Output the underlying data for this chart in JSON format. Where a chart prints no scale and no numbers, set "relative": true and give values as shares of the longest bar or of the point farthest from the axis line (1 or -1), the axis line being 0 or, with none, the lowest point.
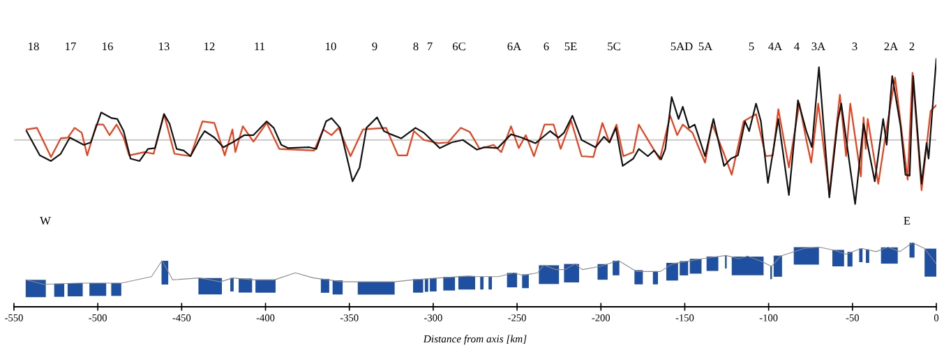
{
  "chart_data": [
    {
      "type": "line",
      "relative": true,
      "xlim": [
        -550,
        0
      ],
      "tick_labels": false,
      "grid": false,
      "marker": "none",
      "line_style": "solid",
      "ref_lines": [
        {
          "axis": "y",
          "value": 0,
          "color": "#c8c8c8"
        }
      ],
      "annotations": [
        "18",
        "17",
        "16",
        "13",
        "12",
        "11",
        "10",
        "9",
        "8",
        "7",
        "6C",
        "6A",
        "6",
        "5E",
        "5C",
        "5AD",
        "5A",
        "5",
        "4A",
        "4",
        "3A",
        "3",
        "2A",
        "2"
      ],
      "series": [
        {
          "color": "#e8401c",
          "x": [
            -542.5,
            -536.3,
            -527.9,
            -522.1,
            -517.9,
            -513.8,
            -509.6,
            -506.3,
            -500.9,
            -496.7,
            -493.0,
            -488.8,
            -484.6,
            -481.3,
            -472.1,
            -466.7,
            -460.5,
            -454.3,
            -444.7,
            -437.6,
            -430.5,
            -424.3,
            -419.7,
            -418.0,
            -413.5,
            -407.2,
            -399.3,
            -391.8,
            -371.0,
            -365.6,
            -360.6,
            -356.4,
            -349.3,
            -341.9,
            -328.1,
            -321.0,
            -315.6,
            -311.5,
            -305.6,
            -296.9,
            -291.1,
            -283.6,
            -278.2,
            -272.3,
            -264.0,
            -259.4,
            -253.6,
            -249.0,
            -244.8,
            -239.9,
            -233.6,
            -228.2,
            -224.0,
            -217.8,
            -211.5,
            -204.5,
            -199.1,
            -194.9,
            -190.7,
            -186.6,
            -180.7,
            -177.4,
            -169.9,
            -164.9,
            -158.7,
            -154.5,
            -151.2,
            -145.4,
            -137.9,
            -133.7,
            -126.6,
            -122.0,
            -114.9,
            -107.5,
            -101.7,
            -97.5,
            -94.2,
            -87.9,
            -81.7,
            -77.5,
            -74.6,
            -70.4,
            -63.8,
            -57.5,
            -53.8,
            -51.3,
            -45.0,
            -43.4,
            -42.1,
            -40.9,
            -34.6,
            -29.6,
            -24.6,
            -17.1,
            -14.2,
            -8.8,
            -3.4,
            0
          ],
          "values": [
            0.13,
            0.15,
            -0.21,
            0.02,
            0.03,
            0.15,
            0.09,
            -0.19,
            0.19,
            0.19,
            0.06,
            0.19,
            0.03,
            -0.19,
            -0.15,
            -0.17,
            0.32,
            -0.17,
            -0.2,
            0.23,
            0.21,
            -0.19,
            0.13,
            -0.15,
            0.17,
            -0.02,
            0.21,
            -0.11,
            -0.13,
            0.13,
            0.06,
            0.15,
            -0.2,
            0.13,
            0.15,
            -0.19,
            -0.19,
            0.11,
            0.0,
            -0.04,
            -0.03,
            0.15,
            0.1,
            -0.11,
            -0.06,
            -0.15,
            0.17,
            -0.1,
            0.06,
            -0.2,
            0.19,
            0.19,
            -0.11,
            0.24,
            -0.2,
            -0.21,
            0.21,
            -0.03,
            0.19,
            -0.2,
            -0.15,
            0.19,
            -0.07,
            -0.24,
            0.3,
            0.06,
            0.19,
            0.09,
            -0.28,
            0.2,
            -0.17,
            -0.43,
            0.23,
            0.32,
            -0.2,
            -0.19,
            0.38,
            -0.34,
            0.45,
            0.0,
            -0.28,
            0.45,
            -0.66,
            0.56,
            -0.2,
            0.45,
            -0.45,
            0.28,
            -0.11,
            0.26,
            -0.54,
            0.15,
            0.77,
            -0.49,
            0.83,
            -0.62,
            0.36,
            0.43
          ]
        },
        {
          "color": "#111111",
          "x": [
            -542.5,
            -534.6,
            -527.9,
            -522.1,
            -516.7,
            -508.4,
            -504.2,
            -498.0,
            -491.7,
            -488.4,
            -484.6,
            -480.5,
            -475.1,
            -470.1,
            -465.9,
            -460.5,
            -457.2,
            -453.0,
            -448.8,
            -444.7,
            -438.8,
            -436.3,
            -430.5,
            -425.1,
            -419.7,
            -412.6,
            -407.2,
            -399.3,
            -395.1,
            -390.6,
            -386.4,
            -373.9,
            -369.7,
            -363.9,
            -360.6,
            -355.6,
            -348.1,
            -343.9,
            -339.8,
            -333.5,
            -329.4,
            -325.2,
            -319.0,
            -310.6,
            -305.6,
            -296.1,
            -289.0,
            -282.3,
            -274.0,
            -269.8,
            -261.5,
            -253.6,
            -247.4,
            -239.0,
            -230.3,
            -225.3,
            -222.0,
            -217.0,
            -211.5,
            -203.2,
            -198.2,
            -194.9,
            -191.1,
            -187.0,
            -180.7,
            -177.4,
            -172.0,
            -168.3,
            -164.1,
            -161.6,
            -157.8,
            -153.7,
            -151.2,
            -147.4,
            -144.1,
            -137.9,
            -132.9,
            -126.6,
            -122.5,
            -118.3,
            -114.1,
            -111.6,
            -107.5,
            -104.6,
            -100.4,
            -94.2,
            -87.9,
            -82.5,
            -77.5,
            -74.2,
            -70.0,
            -63.8,
            -58.8,
            -56.7,
            -48.4,
            -43.4,
            -36.7,
            -31.7,
            -29.6,
            -26.3,
            -21.3,
            -18.4,
            -15.9,
            -13.8,
            -8.8,
            -5.8,
            -4.6,
            0
          ],
          "values": [
            0.11,
            -0.19,
            -0.26,
            -0.17,
            0.03,
            -0.06,
            -0.03,
            0.34,
            0.27,
            0.26,
            0.11,
            -0.23,
            -0.26,
            -0.11,
            -0.1,
            0.32,
            0.2,
            -0.11,
            -0.13,
            -0.2,
            0.03,
            0.11,
            0.03,
            -0.09,
            -0.03,
            0.06,
            0.06,
            0.23,
            0.15,
            -0.06,
            -0.1,
            -0.09,
            -0.11,
            0.23,
            0.27,
            0.15,
            -0.51,
            -0.34,
            0.15,
            0.28,
            0.11,
            0.07,
            0.02,
            0.15,
            0.09,
            -0.1,
            -0.03,
            0.0,
            -0.12,
            -0.09,
            -0.1,
            0.07,
            0.03,
            -0.04,
            0.11,
            0.03,
            0.09,
            0.3,
            0.0,
            -0.09,
            0.04,
            -0.03,
            0.15,
            -0.32,
            -0.23,
            -0.11,
            -0.2,
            -0.13,
            -0.24,
            -0.11,
            0.53,
            0.26,
            0.41,
            0.15,
            0.19,
            -0.2,
            0.26,
            -0.32,
            -0.23,
            -0.19,
            0.23,
            0.11,
            0.45,
            0.23,
            -0.53,
            0.26,
            -0.68,
            0.49,
            0.11,
            -0.09,
            0.9,
            -0.71,
            0.23,
            0.45,
            -0.79,
            0.2,
            -0.51,
            0.26,
            -0.06,
            0.79,
            0.17,
            -0.43,
            -0.44,
            0.79,
            -0.54,
            -0.04,
            -0.23,
            1.0
          ]
        }
      ]
    },
    {
      "type": "line",
      "relative": true,
      "xlim": [
        -550,
        0
      ],
      "xticks": [
        -550,
        -500,
        -450,
        -400,
        -350,
        -300,
        -250,
        -200,
        -150,
        -100,
        -50,
        0
      ],
      "xlabel": "Distance from axis [km]",
      "tick_labels": "x",
      "grid": false,
      "marker": "none",
      "line_style": "solid",
      "annotations": [
        "W",
        "E"
      ],
      "series": [
        {
          "color": "#8a8a8a",
          "x": [
            -542.9,
            -532.1,
            -510.9,
            -496.3,
            -485.9,
            -468.0,
            -461.7,
            -457.2,
            -455.5,
            -439.3,
            -426.8,
            -419.7,
            -407.2,
            -394.7,
            -382.2,
            -371.4,
            -353.5,
            -323.1,
            -312.3,
            -296.5,
            -278.6,
            -275.2,
            -261.1,
            -251.9,
            -246.5,
            -237.8,
            -234.0,
            -226.9,
            -221.5,
            -215.3,
            -211.1,
            -200.3,
            -189.5,
            -178.7,
            -164.5,
            -157.4,
            -139.5,
            -125.4,
            -117.9,
            -112.5,
            -103.7,
            -98.3,
            -92.9,
            -78.7,
            -69.6,
            -60.8,
            -53.8,
            -44.6,
            -35.9,
            -28.8,
            -21.7,
            -14.2,
            -7.1,
            0
          ],
          "values": [
            0.42,
            0.35,
            0.37,
            0.37,
            0.37,
            0.47,
            0.72,
            0.51,
            0.42,
            0.45,
            0.39,
            0.45,
            0.42,
            0.42,
            0.53,
            0.45,
            0.39,
            0.39,
            0.42,
            0.45,
            0.48,
            0.47,
            0.47,
            0.53,
            0.49,
            0.53,
            0.65,
            0.58,
            0.58,
            0.67,
            0.58,
            0.63,
            0.72,
            0.55,
            0.55,
            0.67,
            0.75,
            0.8,
            0.75,
            0.79,
            0.7,
            0.63,
            0.79,
            0.91,
            0.93,
            0.88,
            0.82,
            0.91,
            0.86,
            0.93,
            0.86,
            1.0,
            0.91,
            0.67
          ]
        }
      ],
      "bands": [
        {
          "axis": "x",
          "from": -543,
          "to": -531,
          "color": "#1f4fa0"
        },
        {
          "axis": "x",
          "from": -526,
          "to": -520,
          "color": "#1f4fa0"
        },
        {
          "axis": "x",
          "from": -518,
          "to": -509,
          "color": "#1f4fa0"
        },
        {
          "axis": "x",
          "from": -505,
          "to": -495,
          "color": "#1f4fa0"
        },
        {
          "axis": "x",
          "from": -492,
          "to": -486,
          "color": "#1f4fa0"
        },
        {
          "axis": "x",
          "from": -462,
          "to": -458,
          "color": "#1f4fa0"
        },
        {
          "axis": "x",
          "from": -440,
          "to": -426,
          "color": "#1f4fa0"
        },
        {
          "axis": "x",
          "from": -421,
          "to": -419,
          "color": "#1f4fa0"
        },
        {
          "axis": "x",
          "from": -416,
          "to": -408,
          "color": "#1f4fa0"
        },
        {
          "axis": "x",
          "from": -406,
          "to": -394,
          "color": "#1f4fa0"
        },
        {
          "axis": "x",
          "from": -367,
          "to": -362,
          "color": "#1f4fa0"
        },
        {
          "axis": "x",
          "from": -360,
          "to": -354,
          "color": "#1f4fa0"
        },
        {
          "axis": "x",
          "from": -345,
          "to": -323,
          "color": "#1f4fa0"
        },
        {
          "axis": "x",
          "from": -312,
          "to": -306,
          "color": "#1f4fa0"
        },
        {
          "axis": "x",
          "from": -305,
          "to": -303,
          "color": "#1f4fa0"
        },
        {
          "axis": "x",
          "from": -302,
          "to": -298,
          "color": "#1f4fa0"
        },
        {
          "axis": "x",
          "from": -294,
          "to": -287,
          "color": "#1f4fa0"
        },
        {
          "axis": "x",
          "from": -285,
          "to": -275,
          "color": "#1f4fa0"
        },
        {
          "axis": "x",
          "from": -272,
          "to": -270,
          "color": "#1f4fa0"
        },
        {
          "axis": "x",
          "from": -267,
          "to": -265,
          "color": "#1f4fa0"
        },
        {
          "axis": "x",
          "from": -256,
          "to": -250,
          "color": "#1f4fa0"
        },
        {
          "axis": "x",
          "from": -247,
          "to": -243,
          "color": "#1f4fa0"
        },
        {
          "axis": "x",
          "from": -237,
          "to": -225,
          "color": "#1f4fa0"
        },
        {
          "axis": "x",
          "from": -222,
          "to": -213,
          "color": "#1f4fa0"
        },
        {
          "axis": "x",
          "from": -202,
          "to": -196,
          "color": "#1f4fa0"
        },
        {
          "axis": "x",
          "from": -193,
          "to": -189,
          "color": "#1f4fa0"
        },
        {
          "axis": "x",
          "from": -180,
          "to": -175,
          "color": "#1f4fa0"
        },
        {
          "axis": "x",
          "from": -169,
          "to": -166,
          "color": "#1f4fa0"
        },
        {
          "axis": "x",
          "from": -161,
          "to": -154,
          "color": "#1f4fa0"
        },
        {
          "axis": "x",
          "from": -153,
          "to": -148,
          "color": "#1f4fa0"
        },
        {
          "axis": "x",
          "from": -147,
          "to": -140,
          "color": "#1f4fa0"
        },
        {
          "axis": "x",
          "from": -137,
          "to": -130,
          "color": "#1f4fa0"
        },
        {
          "axis": "x",
          "from": -126,
          "to": -125,
          "color": "#1f4fa0"
        },
        {
          "axis": "x",
          "from": -122,
          "to": -103,
          "color": "#1f4fa0"
        },
        {
          "axis": "x",
          "from": -99,
          "to": -98,
          "color": "#1f4fa0"
        },
        {
          "axis": "x",
          "from": -97,
          "to": -92,
          "color": "#1f4fa0"
        },
        {
          "axis": "x",
          "from": -85,
          "to": -70,
          "color": "#1f4fa0"
        },
        {
          "axis": "x",
          "from": -62,
          "to": -55,
          "color": "#1f4fa0"
        },
        {
          "axis": "x",
          "from": -53,
          "to": -50,
          "color": "#1f4fa0"
        },
        {
          "axis": "x",
          "from": -46,
          "to": -44,
          "color": "#1f4fa0"
        },
        {
          "axis": "x",
          "from": -42,
          "to": -40,
          "color": "#1f4fa0"
        },
        {
          "axis": "x",
          "from": -33,
          "to": -23,
          "color": "#1f4fa0"
        },
        {
          "axis": "x",
          "from": -16,
          "to": -13,
          "color": "#1f4fa0"
        },
        {
          "axis": "x",
          "from": -7,
          "to": 0,
          "color": "#1f4fa0"
        }
      ]
    }
  ]
}
